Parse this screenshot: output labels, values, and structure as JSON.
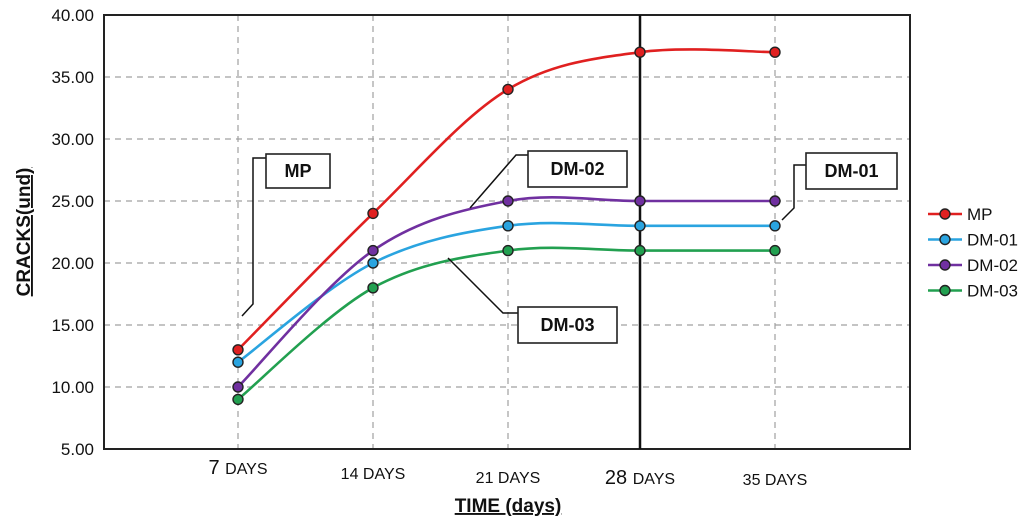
{
  "chart_data": {
    "type": "line",
    "categories": [
      "7 DAYS",
      "14 DAYS",
      "21 DAYS",
      "28 DAYS",
      "35 DAYS"
    ],
    "xlabel": "TIME (days)",
    "ylabel": "CRACKS(und)",
    "ylim": [
      5,
      40
    ],
    "yticks": [
      "5.00",
      "10.00",
      "15.00",
      "20.00",
      "25.00",
      "30.00",
      "35.00",
      "40.00"
    ],
    "grid": true,
    "legend_position": "right",
    "series": [
      {
        "name": "MP",
        "color": "#e02020",
        "values": [
          13,
          24,
          34,
          37,
          37
        ]
      },
      {
        "name": "DM-01",
        "color": "#2aa4e0",
        "values": [
          12,
          20,
          23,
          23,
          23
        ]
      },
      {
        "name": "DM-02",
        "color": "#7030a0",
        "values": [
          10,
          21,
          25,
          25,
          25
        ]
      },
      {
        "name": "DM-03",
        "color": "#22a050",
        "values": [
          9,
          18,
          21,
          21,
          21
        ]
      }
    ],
    "annotations": [
      "MP",
      "DM-02",
      "DM-01",
      "DM-03"
    ]
  }
}
